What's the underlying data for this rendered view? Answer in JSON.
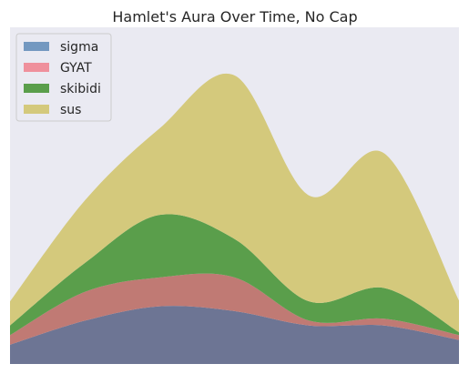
{
  "chart_data": {
    "type": "area",
    "stacked": true,
    "smooth": true,
    "title": "Hamlet's Aura Over Time, No Cap",
    "xlabel": "",
    "ylabel": "",
    "grid": false,
    "legend_position": "top-left",
    "background_color": "#eaeaf2",
    "x": [
      0,
      1,
      2,
      3,
      4,
      5,
      6
    ],
    "ylim": [
      0,
      35
    ],
    "series": [
      {
        "name": "sigma",
        "color": "#6d7594",
        "values": [
          2.0,
          4.5,
          6.0,
          5.5,
          4.0,
          4.0,
          2.5
        ]
      },
      {
        "name": "GYAT",
        "color": "#c07a74",
        "values": [
          1.0,
          3.0,
          3.0,
          3.5,
          0.5,
          0.7,
          0.5
        ]
      },
      {
        "name": "skibidi",
        "color": "#5a9e4b",
        "values": [
          1.0,
          3.0,
          6.5,
          4.0,
          2.0,
          3.2,
          0.3
        ]
      },
      {
        "name": "sus",
        "color": "#d4c97c",
        "values": [
          2.5,
          6.5,
          9.0,
          17.0,
          11.0,
          14.0,
          3.3
        ]
      }
    ],
    "legend_swatches": [
      "#7398c0",
      "#ef909c",
      "#5a9e4b",
      "#d4c97c"
    ]
  }
}
